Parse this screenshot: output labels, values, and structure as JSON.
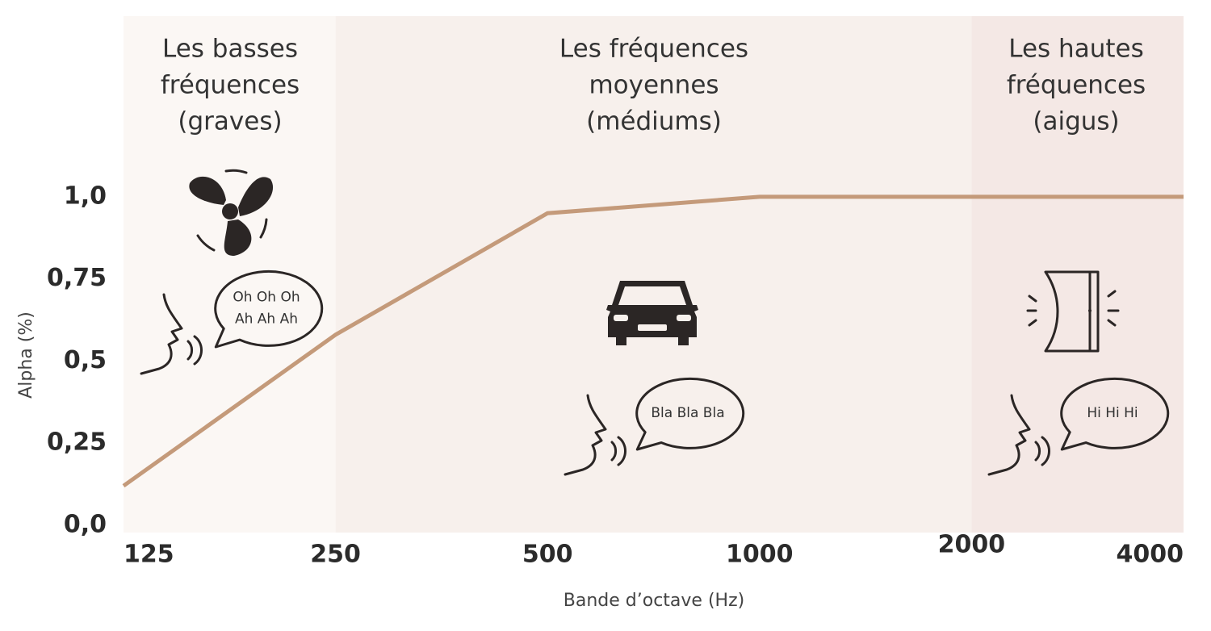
{
  "chart_data": {
    "type": "line",
    "categories": [
      "125",
      "250",
      "500",
      "1000",
      "2000",
      "4000"
    ],
    "values": [
      0.12,
      0.58,
      0.95,
      1.0,
      1.0,
      1.0
    ],
    "color": "#c49a7a",
    "x_label": "Bande d’octave (Hz)",
    "y_label": "Alpha (%)",
    "ylim": [
      0,
      1.55
    ],
    "yticks": [
      {
        "value": 0,
        "label": "0,0"
      },
      {
        "value": 0.25,
        "label": "0,25"
      },
      {
        "value": 0.5,
        "label": "0,5"
      },
      {
        "value": 0.75,
        "label": "0,75"
      },
      {
        "value": 1.0,
        "label": "1,0"
      }
    ],
    "regions": [
      {
        "lines": [
          "Les basses",
          "fréquences",
          "(graves)"
        ],
        "color": "#fbf7f4"
      },
      {
        "lines": [
          "Les fréquences",
          "moyennes",
          "(médiums)"
        ],
        "color": "#f7f0ec"
      },
      {
        "lines": [
          "Les hautes",
          "fréquences",
          "(aigus)"
        ],
        "color": "#f4e8e5"
      }
    ],
    "bubbles": [
      {
        "lines": [
          "Oh Oh Oh",
          "Ah Ah Ah"
        ]
      },
      {
        "lines": [
          "Bla Bla Bla"
        ]
      },
      {
        "lines": [
          "Hi Hi Hi"
        ]
      }
    ]
  }
}
